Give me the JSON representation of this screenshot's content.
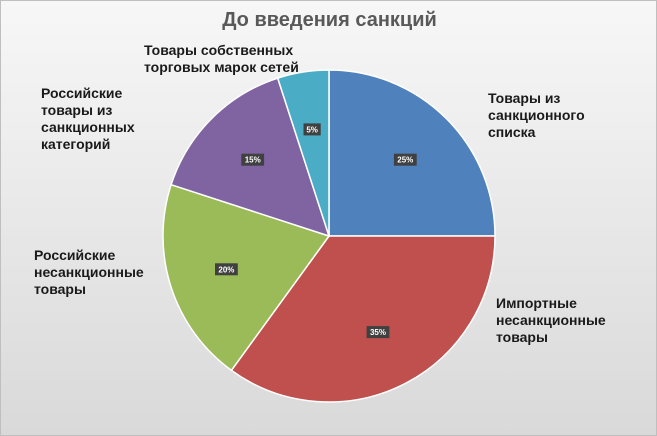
{
  "chart_data": {
    "type": "pie",
    "title": "До введения санкций",
    "categories": [
      "Товары из санкционного списка",
      "Импортные несанкционные товары",
      "Российские несанкционные товары",
      "Российские товары из санкционных категорий",
      "Товары собственных торговых марок сетей"
    ],
    "values": [
      25,
      35,
      20,
      15,
      5
    ],
    "data_labels": [
      "25%",
      "35%",
      "20%",
      "15%",
      "5%"
    ],
    "colors": [
      "#4F81BD",
      "#C0504D",
      "#9BBB59",
      "#8064A2",
      "#4BACC6"
    ],
    "legend": "none"
  }
}
